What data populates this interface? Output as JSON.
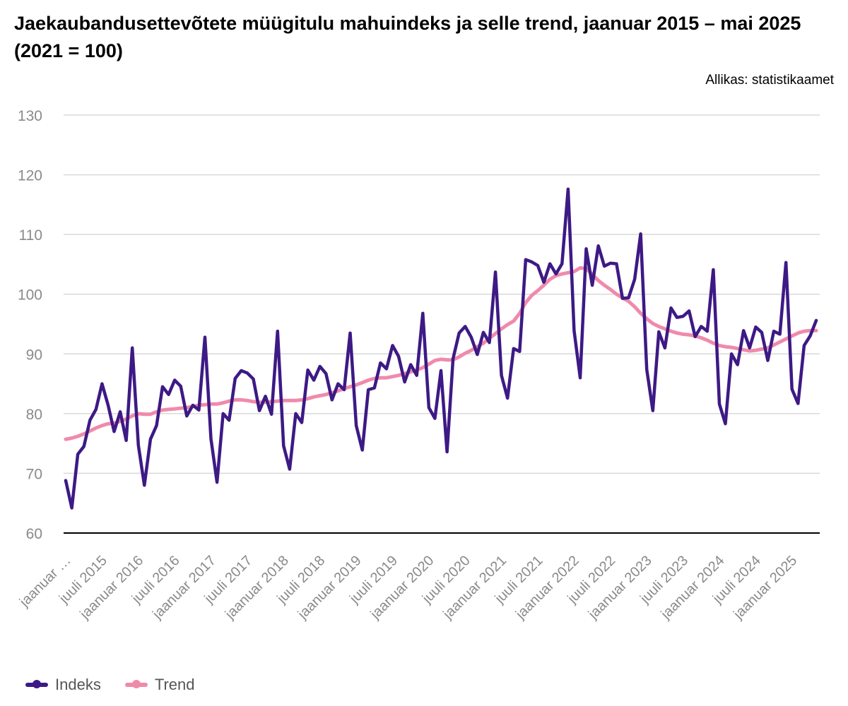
{
  "chart_data": {
    "type": "line",
    "title": "Jaekaubandusettevõtete müügitulu mahuindeks ja selle trend, jaanuar 2015 – mai 2025 (2021 = 100)",
    "source": "Allikas: statistikaamet",
    "xlabel": "",
    "ylabel": "",
    "ylim": [
      60,
      130
    ],
    "yticks": [
      60,
      70,
      80,
      90,
      100,
      110,
      120,
      130
    ],
    "grid": true,
    "legend_position": "bottom-left",
    "x_tick_labels": [
      "jaanuar …",
      "juuli 2015",
      "jaanuar 2016",
      "juuli 2016",
      "jaanuar 2017",
      "juuli 2017",
      "jaanuar 2018",
      "juuli 2018",
      "jaanuar 2019",
      "juuli 2019",
      "jaanuar 2020",
      "juuli 2020",
      "jaanuar 2021",
      "juuli 2021",
      "jaanuar 2022",
      "juuli 2022",
      "jaanuar 2023",
      "juuli 2023",
      "jaanuar 2024",
      "juuli 2024",
      "jaanuar 2025"
    ],
    "period": {
      "start": "2015-01",
      "end": "2025-05",
      "frequency": "monthly"
    },
    "series": [
      {
        "name": "Indeks",
        "color": "#3d1a85",
        "values": [
          68.8,
          64.2,
          73.2,
          74.5,
          78.9,
          80.7,
          85.0,
          81.4,
          77.0,
          80.3,
          75.5,
          91.0,
          74.7,
          68.0,
          75.7,
          78.0,
          84.5,
          83.2,
          85.6,
          84.6,
          79.6,
          81.4,
          80.6,
          92.8,
          75.8,
          68.5,
          80.0,
          78.9,
          85.9,
          87.2,
          86.8,
          85.8,
          80.5,
          82.9,
          79.9,
          93.8,
          74.6,
          70.7,
          80.0,
          78.5,
          87.3,
          85.6,
          87.9,
          86.7,
          82.3,
          85.0,
          84.0,
          93.5,
          78.0,
          73.9,
          84.0,
          84.3,
          88.5,
          87.5,
          91.4,
          89.6,
          85.3,
          88.2,
          86.4,
          96.8,
          81.0,
          79.2,
          87.2,
          73.6,
          89.2,
          93.5,
          94.6,
          92.8,
          89.9,
          93.6,
          91.9,
          103.7,
          86.4,
          82.6,
          90.9,
          90.4,
          105.8,
          105.4,
          104.8,
          102.0,
          105.1,
          103.4,
          105.1,
          117.6,
          93.9,
          86.0,
          107.6,
          101.5,
          108.1,
          104.7,
          105.2,
          105.1,
          99.3,
          99.4,
          102.5,
          110.1,
          87.4,
          80.5,
          93.7,
          91.0,
          97.7,
          96.1,
          96.3,
          97.2,
          92.9,
          94.6,
          93.8,
          104.1,
          81.6,
          78.3,
          90.0,
          88.2,
          93.9,
          91.0,
          94.5,
          93.6,
          88.9,
          93.8,
          93.3,
          105.3,
          84.1,
          81.7,
          91.4,
          93.0,
          95.6
        ]
      },
      {
        "name": "Trend",
        "color": "#f08aaa",
        "values": [
          75.7,
          75.9,
          76.2,
          76.6,
          77.1,
          77.6,
          78.0,
          78.3,
          78.4,
          78.7,
          79.1,
          79.6,
          80.0,
          79.9,
          79.9,
          80.3,
          80.6,
          80.7,
          80.8,
          80.9,
          81.0,
          81.2,
          81.4,
          81.5,
          81.6,
          81.6,
          81.8,
          82.1,
          82.3,
          82.3,
          82.2,
          82.0,
          81.9,
          81.9,
          82.0,
          82.1,
          82.2,
          82.2,
          82.2,
          82.3,
          82.5,
          82.8,
          83.0,
          83.2,
          83.5,
          83.8,
          84.2,
          84.5,
          84.8,
          85.2,
          85.6,
          85.9,
          86.0,
          86.0,
          86.2,
          86.4,
          86.7,
          87.0,
          87.3,
          87.7,
          88.3,
          88.9,
          89.1,
          89.0,
          89.0,
          89.5,
          90.1,
          90.6,
          91.2,
          91.8,
          92.6,
          93.4,
          94.2,
          94.9,
          95.5,
          96.8,
          98.6,
          99.8,
          100.6,
          101.5,
          102.5,
          103.1,
          103.4,
          103.6,
          103.8,
          104.4,
          104.3,
          103.3,
          102.3,
          101.5,
          100.8,
          100.0,
          99.4,
          98.8,
          97.9,
          96.8,
          95.9,
          95.1,
          94.6,
          94.2,
          93.8,
          93.5,
          93.3,
          93.2,
          93.0,
          92.7,
          92.3,
          91.8,
          91.4,
          91.2,
          91.1,
          90.9,
          90.7,
          90.5,
          90.6,
          90.8,
          91.0,
          91.5,
          92.0,
          92.5,
          93.0,
          93.5,
          93.8,
          93.9,
          93.9
        ]
      }
    ]
  }
}
